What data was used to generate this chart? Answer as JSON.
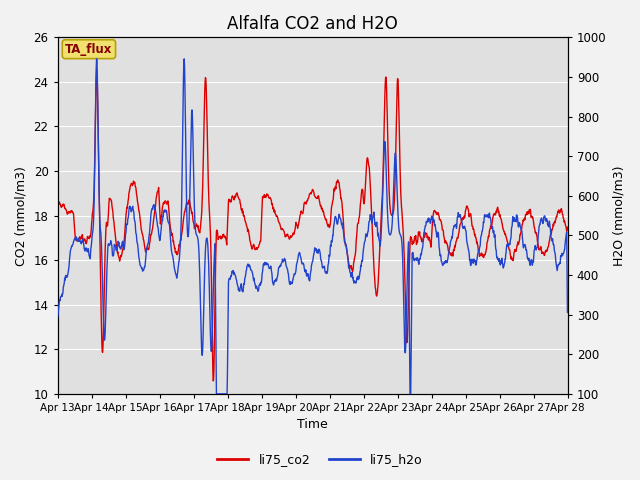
{
  "title": "Alfalfa CO2 and H2O",
  "xlabel": "Time",
  "ylabel_left": "CO2 (mmol/m3)",
  "ylabel_right": "H2O (mmol/m3)",
  "ylim_left": [
    10,
    26
  ],
  "ylim_right": [
    100,
    1000
  ],
  "bg_color": "#e0e0e0",
  "fig_bg_color": "#f2f2f2",
  "annotation_text": "TA_flux",
  "annotation_bg": "#f0e070",
  "annotation_border": "#b8a000",
  "line_co2_color": "#dd0000",
  "line_h2o_color": "#2244cc",
  "legend_co2": "li75_co2",
  "legend_h2o": "li75_h2o",
  "xtick_labels": [
    "Apr 13",
    "Apr 14",
    "Apr 15",
    "Apr 16",
    "Apr 17",
    "Apr 18",
    "Apr 19",
    "Apr 20",
    "Apr 21",
    "Apr 22",
    "Apr 23",
    "Apr 24",
    "Apr 25",
    "Apr 26",
    "Apr 27",
    "Apr 28"
  ],
  "grid_color": "#ffffff",
  "title_fontsize": 12
}
